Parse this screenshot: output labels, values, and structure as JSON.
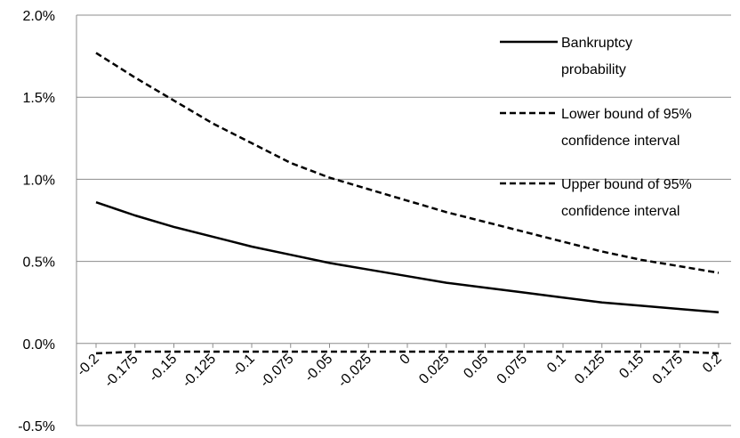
{
  "chart_data": {
    "type": "line",
    "title": "",
    "xlabel": "",
    "ylabel": "",
    "x": [
      -0.2,
      -0.175,
      -0.15,
      -0.125,
      -0.1,
      -0.075,
      -0.05,
      -0.025,
      0,
      0.025,
      0.05,
      0.075,
      0.1,
      0.125,
      0.15,
      0.175,
      0.2
    ],
    "x_tick_labels": [
      "-0.2",
      "-0.175",
      "-0.15",
      "-0.125",
      "-0.1",
      "-0.075",
      "-0.05",
      "-0.025",
      "0",
      "0.025",
      "0.05",
      "0.075",
      "0.1",
      "0.125",
      "0.15",
      "0.175",
      "0.2"
    ],
    "ylim": [
      -0.005,
      0.02
    ],
    "y_ticks": [
      -0.005,
      0.0,
      0.005,
      0.01,
      0.015,
      0.02
    ],
    "y_tick_labels": [
      "-0.5%",
      "0.0%",
      "0.5%",
      "1.0%",
      "1.5%",
      "2.0%"
    ],
    "grid": "horizontal",
    "legend_position": "top-right",
    "series": [
      {
        "name": "Bankruptcy probability",
        "legend_lines": [
          "Bankruptcy",
          "probability"
        ],
        "style": "solid",
        "color": "#000000",
        "values": [
          0.0086,
          0.0078,
          0.0071,
          0.0065,
          0.0059,
          0.0054,
          0.0049,
          0.0045,
          0.0041,
          0.0037,
          0.0034,
          0.0031,
          0.0028,
          0.0025,
          0.0023,
          0.0021,
          0.0019
        ]
      },
      {
        "name": "Lower bound of 95% confidence interval",
        "legend_lines": [
          "Lower bound of 95%",
          "confidence interval"
        ],
        "style": "dashed",
        "color": "#000000",
        "values": [
          0.0177,
          0.0162,
          0.0148,
          0.0134,
          0.0122,
          0.011,
          0.0101,
          0.0094,
          0.0087,
          0.008,
          0.0074,
          0.0068,
          0.0062,
          0.0056,
          0.0051,
          0.0047,
          0.0043
        ]
      },
      {
        "name": "Upper bound of 95% confidence interval",
        "legend_lines": [
          "Upper bound of 95%",
          "confidence interval"
        ],
        "style": "dashed",
        "color": "#000000",
        "values": [
          -0.0006,
          -0.0005,
          -0.0005,
          -0.0005,
          -0.0005,
          -0.0005,
          -0.0005,
          -0.0005,
          -0.0005,
          -0.0005,
          -0.0005,
          -0.0005,
          -0.0005,
          -0.0005,
          -0.0005,
          -0.0005,
          -0.0006
        ]
      }
    ]
  }
}
